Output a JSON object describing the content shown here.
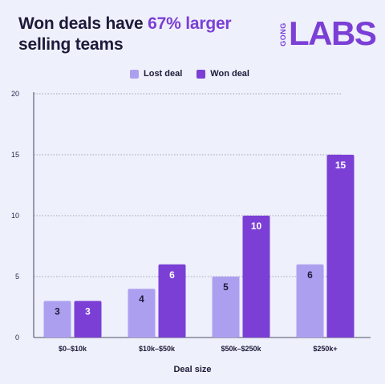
{
  "header": {
    "title_part1": "Won deals have ",
    "title_accent": "67% larger",
    "title_part2": "selling teams",
    "logo_text": "LABS",
    "logo_small": "GONG"
  },
  "colors": {
    "lost": "#ad9ff0",
    "won": "#7b3fd6",
    "accent": "#7b3fd6",
    "background": "#eef0fb"
  },
  "chart_data": {
    "type": "bar",
    "categories": [
      "$0–$10k",
      "$10k–$50k",
      "$50k–$250k",
      "$250k+"
    ],
    "series": [
      {
        "name": "Lost deal",
        "values": [
          3,
          4,
          5,
          6
        ]
      },
      {
        "name": "Won deal",
        "values": [
          3,
          6,
          10,
          15
        ]
      }
    ],
    "xlabel": "Deal size",
    "ylabel": "",
    "ylim": [
      0,
      20
    ],
    "yticks": [
      0,
      5,
      10,
      15,
      20
    ],
    "grid": true,
    "legend_position": "top-center"
  }
}
